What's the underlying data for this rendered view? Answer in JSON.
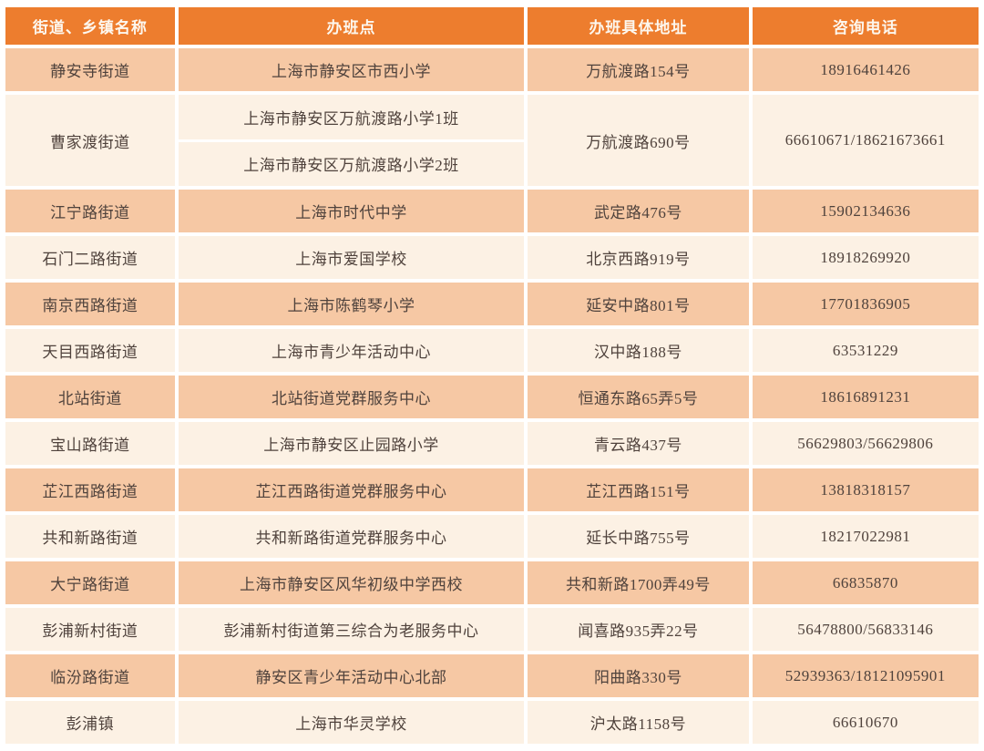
{
  "table": {
    "headers": {
      "name": "街道、乡镇名称",
      "site": "办班点",
      "address": "办班具体地址",
      "phone": "咨询电话"
    },
    "rows": [
      {
        "name": "静安寺街道",
        "site": "上海市静安区市西小学",
        "address": "万航渡路154号",
        "phone": "18916461426"
      },
      {
        "name": "曹家渡街道",
        "sites": [
          "上海市静安区万航渡路小学1班",
          "上海市静安区万航渡路小学2班"
        ],
        "address": "万航渡路690号",
        "phone": "66610671/18621673661"
      },
      {
        "name": "江宁路街道",
        "site": "上海市时代中学",
        "address": "武定路476号",
        "phone": "15902134636"
      },
      {
        "name": "石门二路街道",
        "site": "上海市爱国学校",
        "address": "北京西路919号",
        "phone": "18918269920"
      },
      {
        "name": "南京西路街道",
        "site": "上海市陈鹤琴小学",
        "address": "延安中路801号",
        "phone": "17701836905"
      },
      {
        "name": "天目西路街道",
        "site": "上海市青少年活动中心",
        "address": "汉中路188号",
        "phone": "63531229"
      },
      {
        "name": "北站街道",
        "site": "北站街道党群服务中心",
        "address": "恒通东路65弄5号",
        "phone": "18616891231"
      },
      {
        "name": "宝山路街道",
        "site": "上海市静安区止园路小学",
        "address": "青云路437号",
        "phone": "56629803/56629806"
      },
      {
        "name": "芷江西路街道",
        "site": "芷江西路街道党群服务中心",
        "address": "芷江西路151号",
        "phone": "13818318157"
      },
      {
        "name": "共和新路街道",
        "site": "共和新路街道党群服务中心",
        "address": "延长中路755号",
        "phone": "18217022981"
      },
      {
        "name": "大宁路街道",
        "site": "上海市静安区风华初级中学西校",
        "address": "共和新路1700弄49号",
        "phone": "66835870"
      },
      {
        "name": "彭浦新村街道",
        "site": "彭浦新村街道第三综合为老服务中心",
        "address": "闻喜路935弄22号",
        "phone": "56478800/56833146"
      },
      {
        "name": "临汾路街道",
        "site": "静安区青少年活动中心北部",
        "address": "阳曲路330号",
        "phone": "52939363/18121095901"
      },
      {
        "name": "彭浦镇",
        "site": "上海市华灵学校",
        "address": "沪太路1158号",
        "phone": "66610670"
      }
    ],
    "colors": {
      "header_bg": "#ED7D2E",
      "row_dark_bg": "#F6C8A4",
      "row_light_bg": "#FCF1E4",
      "body_text": "#4F423C",
      "header_text": "#FDF7EE"
    }
  }
}
